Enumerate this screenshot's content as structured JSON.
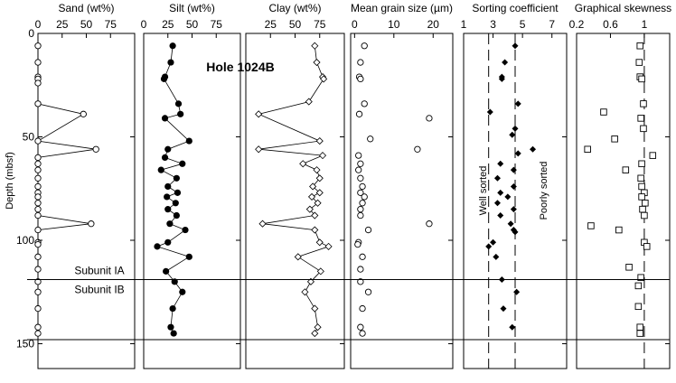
{
  "figure": {
    "y_axis_label": "Depth (mbsf)",
    "y_ticks": [
      0,
      50,
      100,
      150
    ],
    "ylim": [
      0,
      162
    ],
    "hole_label": "Hole 1024B",
    "subunit_boundary_upper_depth": 119,
    "subunit_boundary_lower_depth": 148,
    "subunit_upper_label": "Subunit IA",
    "subunit_lower_label": "Subunit IB"
  },
  "chart_data": [
    {
      "type": "line",
      "title": "Sand (wt%)",
      "xticks": [
        0,
        25,
        50,
        75
      ],
      "xlim": [
        0,
        100
      ],
      "marker": "open-circle",
      "connected": true,
      "depth": [
        6,
        14,
        21,
        22,
        24,
        34,
        39,
        52,
        56,
        60,
        63,
        66,
        70,
        74,
        77,
        79,
        82,
        85,
        88,
        92,
        95,
        101,
        102,
        108,
        114,
        120,
        125,
        133,
        142,
        145
      ],
      "values": [
        0,
        0,
        0,
        0,
        0,
        0,
        47,
        0,
        60,
        0,
        0,
        0,
        0,
        0,
        0,
        0,
        0,
        0,
        0,
        55,
        0,
        0,
        0,
        0,
        0,
        0,
        0,
        0,
        0,
        0
      ]
    },
    {
      "type": "line",
      "title": "Silt (wt%)",
      "xticks": [
        0,
        25,
        50,
        75
      ],
      "xlim": [
        0,
        100
      ],
      "marker": "filled-circle",
      "connected": true,
      "depth": [
        6,
        14,
        21,
        22,
        34,
        39,
        41,
        52,
        56,
        60,
        63,
        66,
        70,
        74,
        77,
        79,
        82,
        85,
        88,
        92,
        95,
        101,
        103,
        108,
        115,
        120,
        125,
        133,
        142,
        145
      ],
      "values": [
        30,
        28,
        22,
        21,
        36,
        38,
        22,
        47,
        25,
        22,
        40,
        18,
        34,
        25,
        35,
        24,
        33,
        25,
        34,
        27,
        43,
        25,
        14,
        47,
        23,
        32,
        40,
        30,
        28,
        31
      ]
    },
    {
      "type": "line",
      "title": "Clay (wt%)",
      "xticks": [
        25,
        50,
        75
      ],
      "xlim": [
        0,
        100
      ],
      "marker": "open-diamond",
      "connected": true,
      "depth": [
        6,
        14,
        21,
        22,
        33,
        39,
        52,
        56,
        59,
        63,
        66,
        70,
        74,
        77,
        79,
        82,
        85,
        88,
        92,
        95,
        101,
        103,
        108,
        115,
        120,
        125,
        133,
        142,
        145
      ],
      "values": [
        70,
        72,
        78,
        79,
        64,
        13,
        75,
        13,
        78,
        58,
        72,
        75,
        68,
        75,
        67,
        73,
        65,
        70,
        17,
        70,
        75,
        84,
        53,
        76,
        66,
        60,
        70,
        73,
        70
      ]
    },
    {
      "type": "scatter",
      "title": "Mean grain size (µm)",
      "xticks": [
        0,
        10,
        20
      ],
      "xlim": [
        -1,
        25
      ],
      "marker": "open-circle",
      "depth": [
        6,
        14,
        21,
        22,
        34,
        39,
        41,
        51,
        56,
        59,
        63,
        66,
        70,
        74,
        77,
        79,
        82,
        85,
        88,
        92,
        95,
        101,
        102,
        108,
        114,
        120,
        125,
        133,
        142,
        145
      ],
      "values": [
        2.5,
        1.5,
        1.2,
        1.5,
        2.5,
        1.2,
        19,
        4,
        16,
        1,
        1.5,
        1,
        1.5,
        2,
        1.5,
        2.5,
        2,
        1.5,
        1.5,
        19,
        3.5,
        1,
        0.8,
        2,
        1.5,
        1.5,
        3.5,
        2,
        1.5,
        2
      ]
    },
    {
      "type": "scatter",
      "title": "Sorting coefficient",
      "xticks": [
        1,
        3,
        5,
        7
      ],
      "xlim": [
        1,
        8
      ],
      "marker": "filled-diamond",
      "reference_lines": [
        2.7,
        4.5
      ],
      "annotation_left": "Well sorted",
      "annotation_right": "Poorly sorted",
      "depth": [
        6,
        14,
        21,
        22,
        34,
        38,
        46,
        49,
        56,
        58,
        63,
        66,
        70,
        74,
        77,
        79,
        82,
        85,
        88,
        92,
        95,
        96,
        101,
        103,
        108,
        119,
        125,
        133,
        142
      ],
      "values": [
        4.5,
        3.8,
        3.6,
        3.6,
        4.7,
        2.8,
        4.5,
        4.3,
        5.7,
        4.7,
        3.5,
        4.4,
        3.3,
        4.4,
        3.5,
        4.0,
        3.3,
        4.4,
        3.5,
        4.2,
        4.4,
        4.5,
        3.0,
        2.7,
        3.2,
        3.6,
        4.6,
        3.7,
        4.3
      ]
    },
    {
      "type": "scatter",
      "title": "Graphical skewness",
      "xticks": [
        0.2,
        0.6,
        1.0
      ],
      "xlim": [
        0.2,
        1.3
      ],
      "marker": "open-square",
      "reference_lines": [
        1.0
      ],
      "depth": [
        6,
        14,
        21,
        22,
        34,
        38,
        41,
        46,
        51,
        56,
        59,
        63,
        66,
        70,
        74,
        77,
        79,
        82,
        85,
        88,
        93,
        95,
        101,
        103,
        113,
        118,
        122,
        132,
        142,
        145
      ],
      "values": [
        0.95,
        0.94,
        0.95,
        0.97,
        0.99,
        0.52,
        0.96,
        0.99,
        0.65,
        0.33,
        1.1,
        0.97,
        0.78,
        0.96,
        0.97,
        1.0,
        0.97,
        1.01,
        0.98,
        1.0,
        0.37,
        0.7,
        1.0,
        1.03,
        0.82,
        0.96,
        0.93,
        0.93,
        0.95,
        0.95
      ]
    }
  ]
}
